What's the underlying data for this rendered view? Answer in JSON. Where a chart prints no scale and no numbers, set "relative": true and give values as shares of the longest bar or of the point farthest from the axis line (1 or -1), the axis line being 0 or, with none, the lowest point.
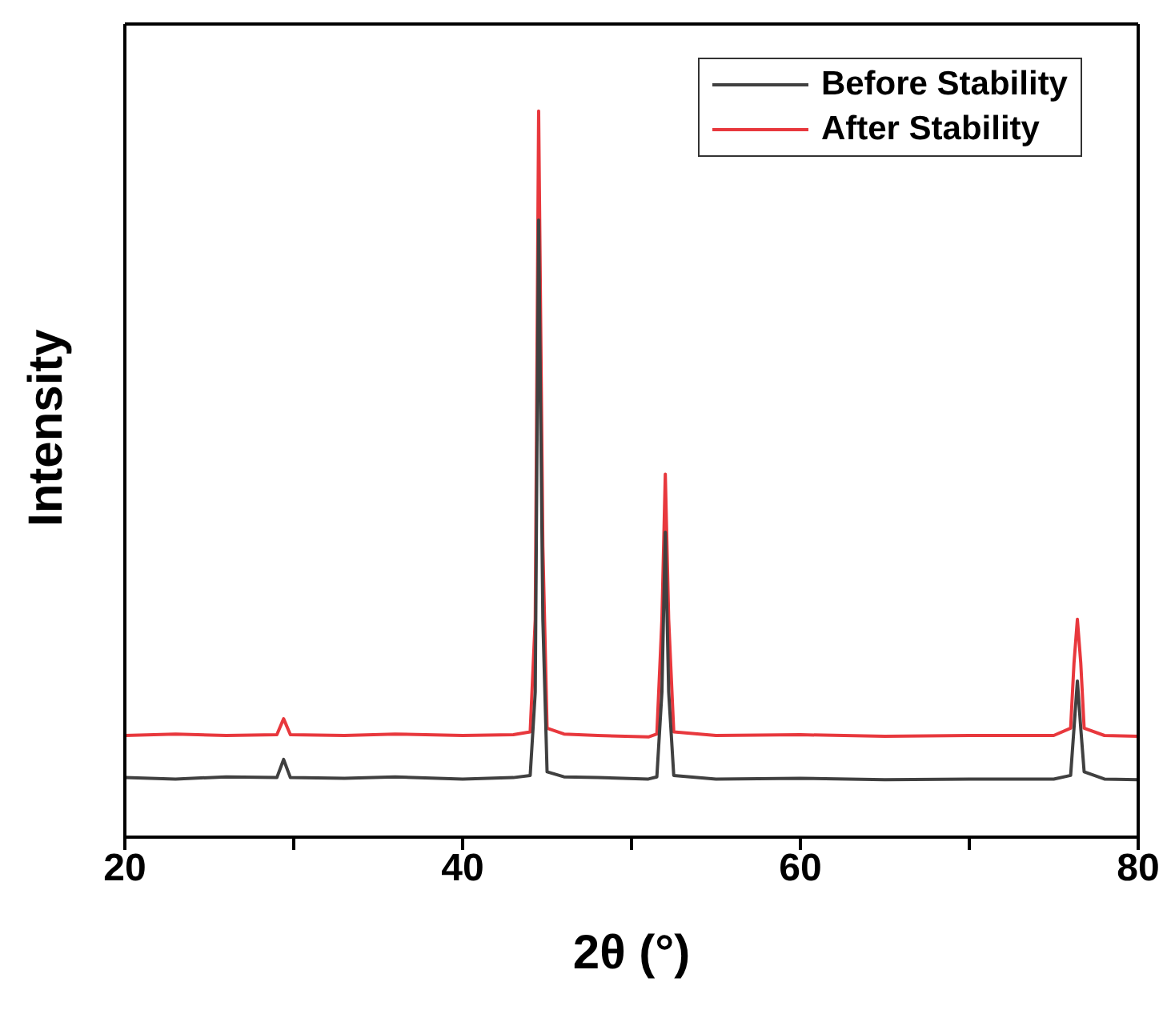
{
  "chart_data": {
    "type": "line",
    "xlabel": "2θ (°)",
    "ylabel": "Intensity",
    "relative": true,
    "xlim": [
      20,
      80
    ],
    "xticks": [
      20,
      {
        "value": 30,
        "label": null
      },
      40,
      {
        "value": 50,
        "label": null
      },
      60,
      {
        "value": 70,
        "label": null
      },
      80
    ],
    "legend": "top right",
    "marker": "none",
    "line_style": "solid",
    "series": [
      {
        "name": "Before Stability",
        "color": "#404040",
        "x": [
          20,
          23,
          26,
          29,
          29.4,
          29.8,
          33,
          36,
          40,
          43,
          44,
          44.3,
          44.5,
          44.75,
          45,
          46,
          48,
          51,
          51.5,
          51.8,
          52,
          52.2,
          52.5,
          55,
          60,
          65,
          70,
          75,
          76,
          76.2,
          76.4,
          76.6,
          76.8,
          78,
          80
        ],
        "values": [
          0.082,
          0.08,
          0.083,
          0.082,
          0.107,
          0.082,
          0.081,
          0.083,
          0.08,
          0.082,
          0.085,
          0.2,
          0.85,
          0.3,
          0.09,
          0.083,
          0.082,
          0.08,
          0.083,
          0.2,
          0.42,
          0.2,
          0.085,
          0.08,
          0.081,
          0.079,
          0.08,
          0.08,
          0.085,
          0.15,
          0.215,
          0.15,
          0.09,
          0.08,
          0.079
        ]
      },
      {
        "name": "After Stability",
        "color": "#e8383d",
        "x": [
          20,
          23,
          26,
          29,
          29.4,
          29.8,
          33,
          36,
          40,
          43,
          44,
          44.3,
          44.5,
          44.75,
          45,
          46,
          48,
          51,
          51.5,
          51.8,
          52,
          52.2,
          52.5,
          55,
          60,
          65,
          70,
          75,
          76,
          76.2,
          76.4,
          76.6,
          76.8,
          78,
          80
        ],
        "values": [
          0.14,
          0.142,
          0.14,
          0.141,
          0.163,
          0.141,
          0.14,
          0.142,
          0.14,
          0.141,
          0.145,
          0.3,
          1,
          0.4,
          0.15,
          0.142,
          0.14,
          0.138,
          0.142,
          0.3,
          0.5,
          0.3,
          0.145,
          0.14,
          0.141,
          0.139,
          0.14,
          0.14,
          0.15,
          0.24,
          0.3,
          0.24,
          0.15,
          0.14,
          0.139
        ]
      }
    ]
  }
}
